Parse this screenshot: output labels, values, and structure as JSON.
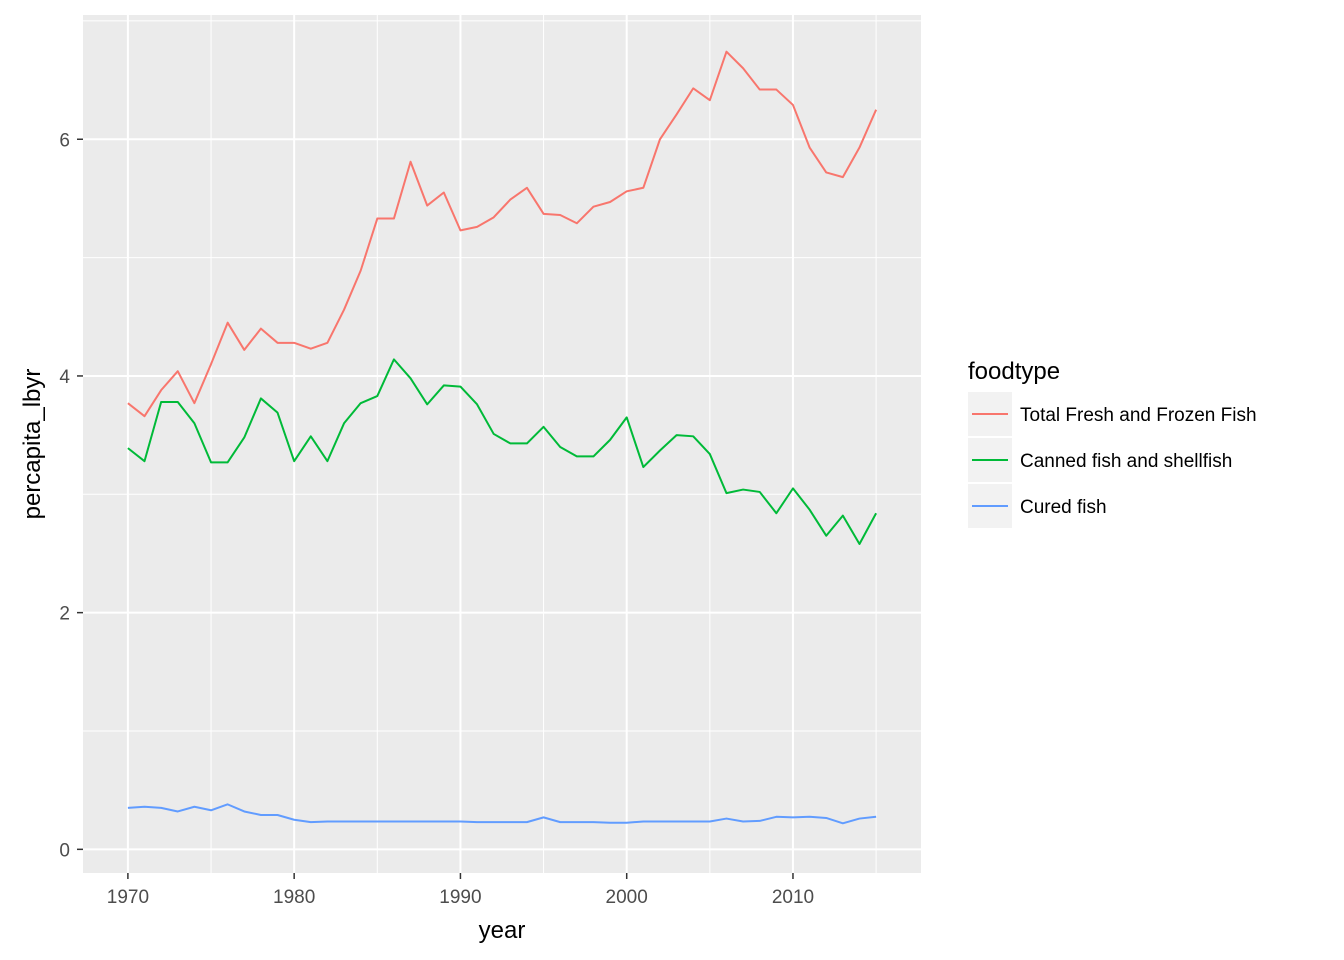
{
  "chart_data": {
    "type": "line",
    "xlabel": "year",
    "ylabel": "percapita_lbyr",
    "xlim": [
      1967.3,
      2017.7
    ],
    "ylim": [
      -0.2,
      7.05
    ],
    "x_ticks": [
      1970,
      1980,
      1990,
      2000,
      2010
    ],
    "x_tick_labels": [
      "1970",
      "1980",
      "1990",
      "2000",
      "2010"
    ],
    "y_ticks": [
      0,
      2,
      4,
      6
    ],
    "y_tick_labels": [
      "0",
      "2",
      "4",
      "6"
    ],
    "x_minor_ticks": [
      1975,
      1985,
      1995,
      2005,
      2015
    ],
    "y_minor_ticks": [
      1,
      3,
      5,
      7
    ],
    "grid": true,
    "legend_title": "foodtype",
    "legend_position": "right",
    "x": [
      1970,
      1971,
      1972,
      1973,
      1974,
      1975,
      1976,
      1977,
      1978,
      1979,
      1980,
      1981,
      1982,
      1983,
      1984,
      1985,
      1986,
      1987,
      1988,
      1989,
      1990,
      1991,
      1992,
      1993,
      1994,
      1995,
      1996,
      1997,
      1998,
      1999,
      2000,
      2001,
      2002,
      2003,
      2004,
      2005,
      2006,
      2007,
      2008,
      2009,
      2010,
      2011,
      2012,
      2013,
      2014,
      2015
    ],
    "series": [
      {
        "name": "Total Fresh and Frozen Fish",
        "color": "#F8766D",
        "values": [
          3.77,
          3.66,
          3.88,
          4.04,
          3.77,
          4.1,
          4.45,
          4.22,
          4.4,
          4.28,
          4.28,
          4.23,
          4.28,
          4.56,
          4.89,
          5.33,
          5.33,
          5.81,
          5.44,
          5.55,
          5.23,
          5.26,
          5.34,
          5.49,
          5.59,
          5.37,
          5.36,
          5.29,
          5.43,
          5.47,
          5.56,
          5.59,
          6.0,
          6.21,
          6.43,
          6.33,
          6.74,
          6.6,
          6.42,
          6.42,
          6.29,
          5.93,
          5.72,
          5.68,
          5.93,
          6.25
        ]
      },
      {
        "name": "Canned fish and shellfish",
        "color": "#00BA38",
        "values": [
          3.39,
          3.28,
          3.78,
          3.78,
          3.6,
          3.27,
          3.27,
          3.48,
          3.81,
          3.69,
          3.28,
          3.49,
          3.28,
          3.6,
          3.77,
          3.83,
          4.14,
          3.98,
          3.76,
          3.92,
          3.91,
          3.76,
          3.51,
          3.43,
          3.43,
          3.57,
          3.4,
          3.32,
          3.32,
          3.46,
          3.65,
          3.23,
          3.37,
          3.5,
          3.49,
          3.34,
          3.01,
          3.04,
          3.02,
          2.84,
          3.05,
          2.87,
          2.65,
          2.82,
          2.58,
          2.84
        ]
      },
      {
        "name": "Cured fish",
        "color": "#619CFF",
        "values": [
          0.35,
          0.36,
          0.35,
          0.32,
          0.36,
          0.33,
          0.38,
          0.32,
          0.29,
          0.29,
          0.25,
          0.23,
          0.235,
          0.235,
          0.235,
          0.235,
          0.235,
          0.235,
          0.235,
          0.235,
          0.235,
          0.23,
          0.23,
          0.23,
          0.23,
          0.27,
          0.23,
          0.23,
          0.23,
          0.225,
          0.225,
          0.235,
          0.235,
          0.235,
          0.235,
          0.235,
          0.26,
          0.235,
          0.24,
          0.275,
          0.27,
          0.275,
          0.265,
          0.22,
          0.26,
          0.275
        ]
      }
    ]
  }
}
